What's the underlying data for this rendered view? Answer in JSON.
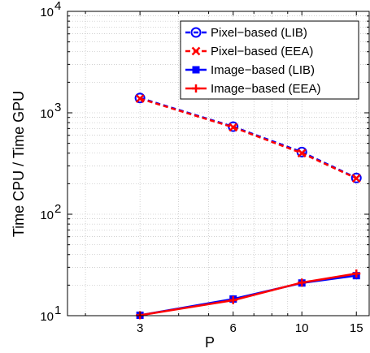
{
  "chart_data": {
    "type": "line",
    "x_scale": "log",
    "y_scale": "log",
    "xlabel": "P",
    "ylabel": "Time CPU / Time GPU",
    "x_ticks": [
      3,
      6,
      10,
      15
    ],
    "xlim": [
      1.75,
      16.5
    ],
    "ylim": [
      10,
      10000
    ],
    "y_ticks": [
      10,
      100,
      1000,
      10000
    ],
    "y_tick_labels": [
      {
        "base": "10",
        "exp": "1"
      },
      {
        "base": "10",
        "exp": "2"
      },
      {
        "base": "10",
        "exp": "3"
      },
      {
        "base": "10",
        "exp": "4"
      }
    ],
    "grid": true,
    "legend_position": "top-right",
    "series": [
      {
        "name": "Pixel−based (LIB)",
        "color": "#0000ff",
        "dash": true,
        "marker": "circle",
        "x": [
          3,
          6,
          10,
          15
        ],
        "y": [
          1400,
          730,
          410,
          228
        ]
      },
      {
        "name": "Pixel−based (EEA)",
        "color": "#ff0000",
        "dash": true,
        "marker": "x",
        "x": [
          3,
          6,
          10,
          15
        ],
        "y": [
          1380,
          720,
          400,
          226
        ]
      },
      {
        "name": "Image−based (LIB)",
        "color": "#0000ff",
        "dash": false,
        "marker": "square",
        "x": [
          3,
          6,
          10,
          15
        ],
        "y": [
          10.1,
          14.6,
          21.0,
          24.8
        ]
      },
      {
        "name": "Image−based (EEA)",
        "color": "#ff0000",
        "dash": false,
        "marker": "plus",
        "x": [
          3,
          6,
          10,
          15
        ],
        "y": [
          10.1,
          14.2,
          21.2,
          26.0
        ]
      }
    ]
  }
}
